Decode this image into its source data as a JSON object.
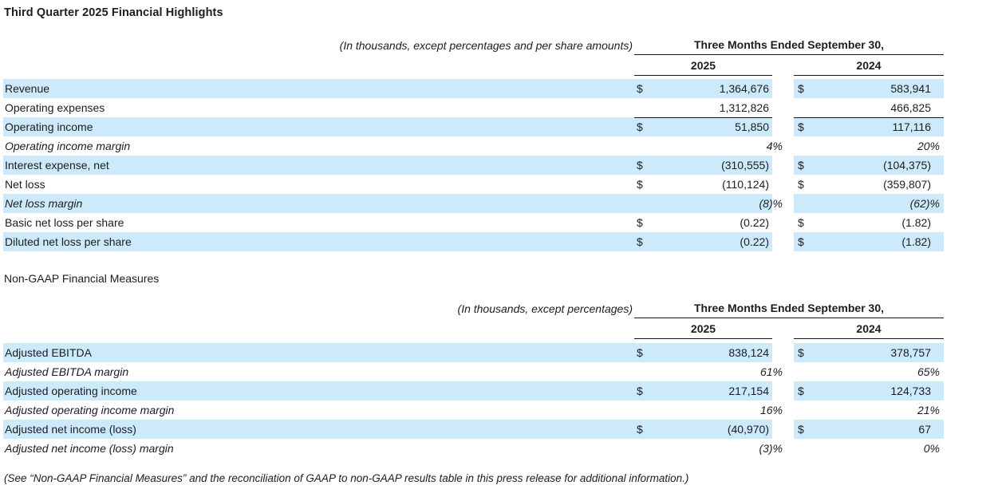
{
  "page": {
    "title": "Third Quarter 2025 Financial Highlights",
    "section2_title": "Non-GAAP Financial Measures",
    "footnote": "(See “Non-GAAP Financial Measures” and the reconciliation of GAAP to non-GAAP results table in this press release for additional information.)"
  },
  "colors": {
    "row_highlight": "#cdeafb",
    "ink": "#1c1d23",
    "rule": "#17181c"
  },
  "tables": [
    {
      "note": "(In thousands, except percentages and per share amounts)",
      "period_header": "Three Months Ended September 30,",
      "years": [
        "2025",
        "2024"
      ],
      "rows": [
        {
          "label": "Revenue",
          "d1": "$",
          "v1": "1,364,676",
          "d2": "$",
          "v2": "583,941",
          "shaded": true,
          "italic": false,
          "pct": false,
          "line_top": false
        },
        {
          "label": "Operating expenses",
          "d1": "",
          "v1": "1,312,826",
          "d2": "",
          "v2": "466,825",
          "shaded": false,
          "italic": false,
          "pct": false,
          "line_top": false
        },
        {
          "label": "Operating income",
          "d1": "$",
          "v1": "51,850",
          "d2": "$",
          "v2": "117,116",
          "shaded": true,
          "italic": false,
          "pct": false,
          "line_top": true
        },
        {
          "label": "Operating income margin",
          "d1": "",
          "v1": "4%",
          "d2": "",
          "v2": "20%",
          "shaded": false,
          "italic": true,
          "pct": true,
          "line_top": false
        },
        {
          "label": "Interest expense, net",
          "d1": "$",
          "v1": "(310,555)",
          "d2": "$",
          "v2": "(104,375)",
          "shaded": true,
          "italic": false,
          "pct": false,
          "line_top": false
        },
        {
          "label": "Net loss",
          "d1": "$",
          "v1": "(110,124)",
          "d2": "$",
          "v2": "(359,807)",
          "shaded": false,
          "italic": false,
          "pct": false,
          "line_top": false
        },
        {
          "label": "Net loss margin",
          "d1": "",
          "v1": "(8)%",
          "d2": "",
          "v2": "(62)%",
          "shaded": true,
          "italic": true,
          "pct": true,
          "line_top": false
        },
        {
          "label": "Basic net loss per share",
          "d1": "$",
          "v1": "(0.22)",
          "d2": "$",
          "v2": "(1.82)",
          "shaded": false,
          "italic": false,
          "pct": false,
          "line_top": false
        },
        {
          "label": "Diluted net loss per share",
          "d1": "$",
          "v1": "(0.22)",
          "d2": "$",
          "v2": "(1.82)",
          "shaded": true,
          "italic": false,
          "pct": false,
          "line_top": false
        }
      ]
    },
    {
      "note": "(In thousands, except percentages)",
      "period_header": "Three Months Ended September 30,",
      "years": [
        "2025",
        "2024"
      ],
      "rows": [
        {
          "label": "Adjusted EBITDA",
          "d1": "$",
          "v1": "838,124",
          "d2": "$",
          "v2": "378,757",
          "shaded": true,
          "italic": false,
          "pct": false,
          "line_top": false
        },
        {
          "label": "Adjusted EBITDA margin",
          "d1": "",
          "v1": "61%",
          "d2": "",
          "v2": "65%",
          "shaded": false,
          "italic": true,
          "pct": true,
          "line_top": false
        },
        {
          "label": "Adjusted operating income",
          "d1": "$",
          "v1": "217,154",
          "d2": "$",
          "v2": "124,733",
          "shaded": true,
          "italic": false,
          "pct": false,
          "line_top": false
        },
        {
          "label": "Adjusted operating income margin",
          "d1": "",
          "v1": "16%",
          "d2": "",
          "v2": "21%",
          "shaded": false,
          "italic": true,
          "pct": true,
          "line_top": false
        },
        {
          "label": "Adjusted net income (loss)",
          "d1": "$",
          "v1": "(40,970)",
          "d2": "$",
          "v2": "67",
          "shaded": true,
          "italic": false,
          "pct": false,
          "line_top": false
        },
        {
          "label": "Adjusted net income (loss) margin",
          "d1": "",
          "v1": "(3)%",
          "d2": "",
          "v2": "0%",
          "shaded": false,
          "italic": true,
          "pct": true,
          "line_top": false
        }
      ]
    }
  ]
}
